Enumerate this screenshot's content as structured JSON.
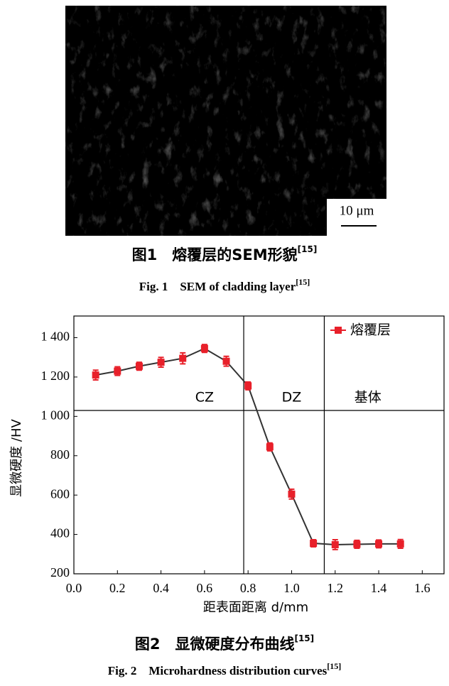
{
  "figure1": {
    "scale_bar": "10 μm",
    "caption_cn": "图1　熔覆层的SEM形貌",
    "caption_cn_ref": "[15]",
    "caption_en": "Fig. 1　SEM of cladding layer",
    "caption_en_ref": "[15]"
  },
  "chart_data": {
    "type": "line",
    "xlabel": "距表面距离 d/mm",
    "ylabel": "显微硬度 /HV",
    "x": [
      0.1,
      0.2,
      0.3,
      0.4,
      0.5,
      0.6,
      0.7,
      0.8,
      0.9,
      1.0,
      1.1,
      1.2,
      1.3,
      1.4,
      1.5
    ],
    "series": [
      {
        "name": "熔覆层",
        "color": "#e8202a",
        "line_color": "#333333",
        "values": [
          1210,
          1230,
          1255,
          1275,
          1295,
          1345,
          1280,
          1155,
          845,
          605,
          355,
          348,
          350,
          352,
          352
        ],
        "errors": [
          25,
          22,
          20,
          25,
          28,
          20,
          25,
          20,
          20,
          25,
          18,
          25,
          20,
          20,
          22
        ]
      }
    ],
    "xlim": [
      0,
      1.7
    ],
    "ylim": [
      200,
      1510
    ],
    "xticks": [
      {
        "value": 0,
        "label": "0.0"
      },
      0.2,
      0.4,
      0.6,
      0.8,
      {
        "value": 1,
        "label": "1.0"
      },
      1.2,
      1.4,
      1.6
    ],
    "yticks": [
      200,
      400,
      600,
      800,
      {
        "value": 1000,
        "label": "1 000"
      },
      {
        "value": 1200,
        "label": "1 200"
      },
      {
        "value": 1400,
        "label": "1 400"
      }
    ],
    "dividers_x": [
      0.78,
      1.15
    ],
    "divider_y": 1030,
    "annotations": [
      {
        "text": "CZ",
        "x": 0.6,
        "y": 1095
      },
      {
        "text": "DZ",
        "x": 1.0,
        "y": 1095
      },
      {
        "text": "基体",
        "x": 1.35,
        "y": 1095
      }
    ],
    "legend": "upper right"
  },
  "figure2": {
    "caption_cn": "图2　显微硬度分布曲线",
    "caption_cn_ref": "[15]",
    "caption_en": "Fig. 2　Microhardness distribution curves",
    "caption_en_ref": "[15]"
  }
}
